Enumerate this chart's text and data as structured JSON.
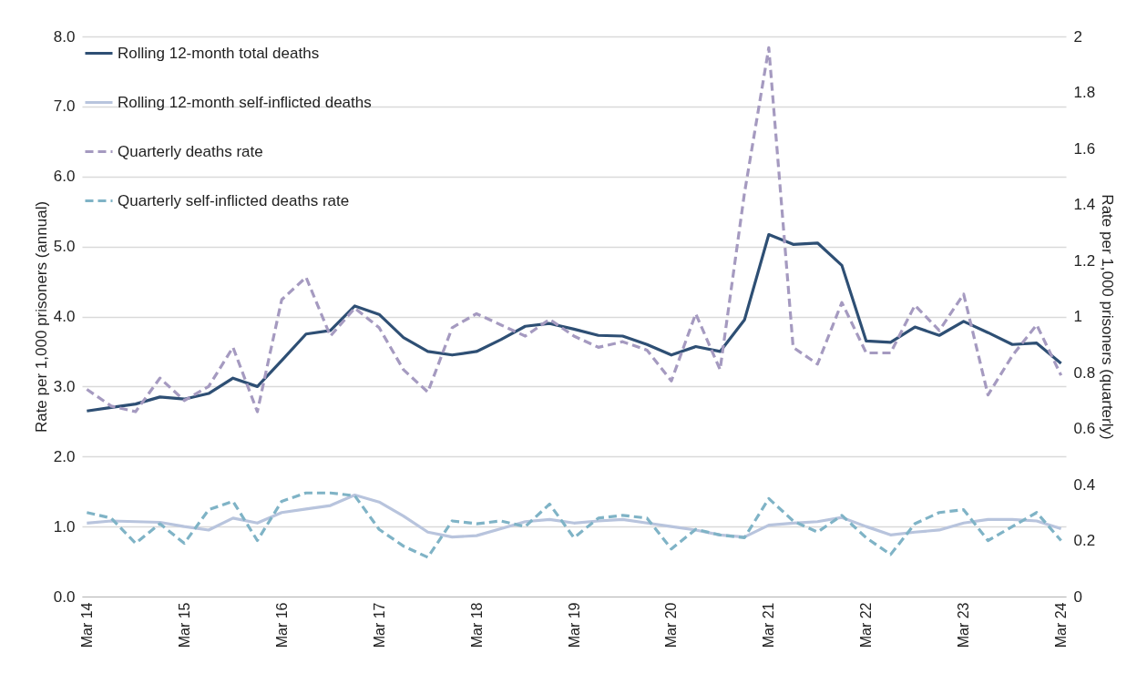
{
  "chart_data": {
    "type": "line",
    "xlabel": null,
    "ylabel": "Rate per 1,000 prisoners (annual)",
    "y2label": "Rate per 1,000 prisoners (quarterly)",
    "categories": [
      "Mar 14",
      null,
      null,
      null,
      "Mar 15",
      null,
      null,
      null,
      "Mar 16",
      null,
      null,
      null,
      "Mar 17",
      null,
      null,
      null,
      "Mar 18",
      null,
      null,
      null,
      "Mar 19",
      null,
      null,
      null,
      "Mar 20",
      null,
      null,
      null,
      "Mar 21",
      null,
      null,
      null,
      "Mar 22",
      null,
      null,
      null,
      "Mar 23",
      null,
      null,
      null,
      "Mar 24"
    ],
    "series": [
      {
        "name": "Rolling 12-month total deaths",
        "color": "#2e4f74",
        "line_style": "solid",
        "values": [
          2.65,
          2.7,
          2.75,
          2.85,
          2.82,
          2.9,
          3.12,
          3.0,
          3.37,
          3.75,
          3.8,
          4.15,
          4.03,
          3.7,
          3.5,
          3.45,
          3.5,
          3.67,
          3.86,
          3.9,
          3.82,
          3.73,
          3.72,
          3.6,
          3.45,
          3.57,
          3.5,
          3.95,
          5.17,
          5.03,
          5.05,
          4.73,
          3.65,
          3.63,
          3.85,
          3.73,
          3.93,
          3.77,
          3.6,
          3.62,
          3.33
        ]
      },
      {
        "name": "Rolling 12-month self-inflicted deaths",
        "color": "#b8c4dd",
        "line_style": "solid",
        "values": [
          1.05,
          1.08,
          1.07,
          1.06,
          1.0,
          0.95,
          1.12,
          1.05,
          1.2,
          1.25,
          1.3,
          1.45,
          1.35,
          1.15,
          0.92,
          0.85,
          0.87,
          0.97,
          1.07,
          1.1,
          1.05,
          1.08,
          1.1,
          1.05,
          1.0,
          0.95,
          0.88,
          0.85,
          1.02,
          1.05,
          1.07,
          1.13,
          1.0,
          0.88,
          0.92,
          0.95,
          1.05,
          1.1,
          1.1,
          1.08,
          0.97
        ]
      },
      {
        "name": "Quarterly deaths rate",
        "color": "#a59ac0",
        "line_style": "dashed",
        "axis": "y2",
        "values": [
          0.74,
          0.68,
          0.66,
          0.78,
          0.7,
          0.75,
          0.89,
          0.66,
          1.06,
          1.14,
          0.93,
          1.03,
          0.96,
          0.81,
          0.73,
          0.96,
          1.01,
          0.97,
          0.93,
          0.99,
          0.93,
          0.89,
          0.91,
          0.88,
          0.77,
          1.01,
          0.81,
          1.44,
          1.96,
          0.89,
          0.83,
          1.05,
          0.87,
          0.87,
          1.04,
          0.95,
          1.08,
          0.72,
          0.86,
          0.97,
          0.79
        ]
      },
      {
        "name": "Quarterly self-inflicted deaths rate",
        "color": "#7fb3c6",
        "line_style": "dashed",
        "axis": "y2",
        "values": [
          0.3,
          0.28,
          0.19,
          0.26,
          0.19,
          0.31,
          0.34,
          0.2,
          0.34,
          0.37,
          0.37,
          0.36,
          0.24,
          0.18,
          0.14,
          0.27,
          0.26,
          0.27,
          0.25,
          0.33,
          0.21,
          0.28,
          0.29,
          0.28,
          0.17,
          0.24,
          0.22,
          0.21,
          0.35,
          0.27,
          0.23,
          0.29,
          0.21,
          0.15,
          0.26,
          0.3,
          0.31,
          0.2,
          0.25,
          0.3,
          0.2
        ]
      }
    ],
    "ylim": [
      0,
      8
    ],
    "yticks": [
      {
        "value": 0,
        "label": "0.0"
      },
      {
        "value": 1,
        "label": "1.0"
      },
      {
        "value": 2,
        "label": "2.0"
      },
      {
        "value": 3,
        "label": "3.0"
      },
      {
        "value": 4,
        "label": "4.0"
      },
      {
        "value": 5,
        "label": "5.0"
      },
      {
        "value": 6,
        "label": "6.0"
      },
      {
        "value": 7,
        "label": "7.0"
      },
      {
        "value": 8,
        "label": "8.0"
      }
    ],
    "y2lim": [
      0,
      2
    ],
    "y2ticks": [
      0,
      0.2,
      0.4,
      0.6,
      0.8,
      1,
      1.2,
      1.4,
      1.6,
      1.8,
      2
    ],
    "grid": "y",
    "legend": "top left"
  }
}
